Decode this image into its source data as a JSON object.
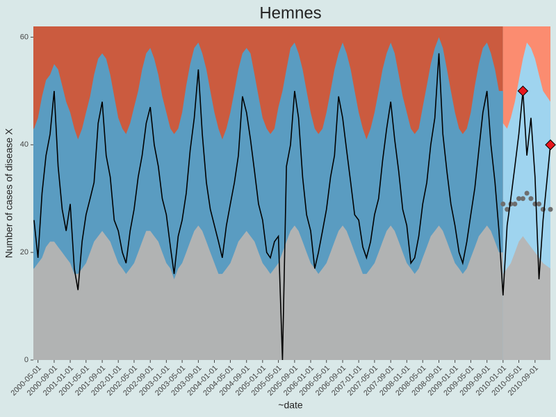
{
  "chart_data": {
    "type": "area",
    "title": "Hemnes",
    "xlabel": "~date",
    "ylabel": "Number of cases of disease X",
    "xlim": [
      "2000-03-27",
      "2010-12-27"
    ],
    "ylim": [
      0,
      62
    ],
    "yticks": [
      0,
      20,
      40,
      60
    ],
    "xticks": [
      "2000-05-01",
      "2000-09-01",
      "2001-01-01",
      "2001-05-01",
      "2001-09-01",
      "2002-01-01",
      "2002-05-01",
      "2002-09-01",
      "2003-01-01",
      "2003-05-01",
      "2003-09-01",
      "2004-01-01",
      "2004-05-01",
      "2004-09-01",
      "2005-01-01",
      "2005-05-01",
      "2005-09-01",
      "2006-01-01",
      "2006-05-01",
      "2006-09-01",
      "2007-01-01",
      "2007-05-01",
      "2007-09-01",
      "2008-01-01",
      "2008-05-01",
      "2008-09-01",
      "2009-01-01",
      "2009-05-01",
      "2009-09-01",
      "2010-01-01",
      "2010-05-01",
      "2010-09-01"
    ],
    "history": {
      "lower_color": "#b1b3b3",
      "band_color": "#5a9cc1",
      "top_color": "#cb5b3f",
      "x": [
        "2000-04-01",
        "2000-05-01",
        "2000-06-01",
        "2000-07-01",
        "2000-08-01",
        "2000-09-01",
        "2000-10-01",
        "2000-11-01",
        "2000-12-01",
        "2001-01-01",
        "2001-02-01",
        "2001-03-01",
        "2001-04-01",
        "2001-05-01",
        "2001-06-01",
        "2001-07-01",
        "2001-08-01",
        "2001-09-01",
        "2001-10-01",
        "2001-11-01",
        "2001-12-01",
        "2002-01-01",
        "2002-02-01",
        "2002-03-01",
        "2002-04-01",
        "2002-05-01",
        "2002-06-01",
        "2002-07-01",
        "2002-08-01",
        "2002-09-01",
        "2002-10-01",
        "2002-11-01",
        "2002-12-01",
        "2003-01-01",
        "2003-02-01",
        "2003-03-01",
        "2003-04-01",
        "2003-05-01",
        "2003-06-01",
        "2003-07-01",
        "2003-08-01",
        "2003-09-01",
        "2003-10-01",
        "2003-11-01",
        "2003-12-01",
        "2004-01-01",
        "2004-02-01",
        "2004-03-01",
        "2004-04-01",
        "2004-05-01",
        "2004-06-01",
        "2004-07-01",
        "2004-08-01",
        "2004-09-01",
        "2004-10-01",
        "2004-11-01",
        "2004-12-01",
        "2005-01-01",
        "2005-02-01",
        "2005-03-01",
        "2005-04-01",
        "2005-05-01",
        "2005-06-01",
        "2005-07-01",
        "2005-08-01",
        "2005-09-01",
        "2005-10-01",
        "2005-11-01",
        "2005-12-01",
        "2006-01-01",
        "2006-02-01",
        "2006-03-01",
        "2006-04-01",
        "2006-05-01",
        "2006-06-01",
        "2006-07-01",
        "2006-08-01",
        "2006-09-01",
        "2006-10-01",
        "2006-11-01",
        "2006-12-01",
        "2007-01-01",
        "2007-02-01",
        "2007-03-01",
        "2007-04-01",
        "2007-05-01",
        "2007-06-01",
        "2007-07-01",
        "2007-08-01",
        "2007-09-01",
        "2007-10-01",
        "2007-11-01",
        "2007-12-01",
        "2008-01-01",
        "2008-02-01",
        "2008-03-01",
        "2008-04-01",
        "2008-05-01",
        "2008-06-01",
        "2008-07-01",
        "2008-08-01",
        "2008-09-01",
        "2008-10-01",
        "2008-11-01",
        "2008-12-01",
        "2009-01-01",
        "2009-02-01",
        "2009-03-01",
        "2009-04-01",
        "2009-05-01",
        "2009-06-01",
        "2009-07-01",
        "2009-08-01",
        "2009-09-01",
        "2009-10-01",
        "2009-11-01",
        "2009-12-01"
      ],
      "lower": [
        17,
        18,
        19,
        21,
        22,
        22,
        21,
        20,
        19,
        18,
        16,
        16,
        17,
        18,
        20,
        22,
        23,
        24,
        23,
        22,
        20,
        18,
        17,
        16,
        17,
        18,
        20,
        22,
        24,
        24,
        23,
        22,
        20,
        18,
        17,
        15,
        17,
        18,
        20,
        22,
        24,
        25,
        24,
        22,
        20,
        18,
        16,
        16,
        17,
        18,
        20,
        22,
        23,
        24,
        23,
        22,
        20,
        18,
        17,
        16,
        17,
        18,
        20,
        22,
        24,
        25,
        24,
        22,
        20,
        18,
        17,
        16,
        17,
        18,
        20,
        22,
        24,
        25,
        24,
        22,
        20,
        18,
        16,
        16,
        17,
        18,
        20,
        22,
        24,
        25,
        24,
        22,
        20,
        18,
        17,
        16,
        17,
        19,
        21,
        23,
        24,
        25,
        24,
        22,
        20,
        18,
        17,
        16,
        17,
        19,
        21,
        23,
        24,
        25,
        24,
        22,
        20
      ],
      "upper": [
        43,
        45,
        49,
        52,
        53,
        55,
        54,
        51,
        48,
        46,
        43,
        41,
        43,
        46,
        49,
        53,
        56,
        57,
        56,
        53,
        49,
        45,
        43,
        42,
        44,
        47,
        50,
        54,
        57,
        58,
        56,
        53,
        49,
        46,
        43,
        42,
        43,
        46,
        51,
        55,
        58,
        59,
        57,
        54,
        50,
        46,
        43,
        41,
        43,
        46,
        50,
        54,
        57,
        58,
        57,
        53,
        49,
        45,
        43,
        42,
        43,
        47,
        50,
        54,
        58,
        59,
        57,
        54,
        50,
        46,
        43,
        42,
        43,
        46,
        50,
        54,
        57,
        59,
        57,
        54,
        50,
        46,
        43,
        41,
        43,
        46,
        50,
        54,
        57,
        59,
        57,
        53,
        49,
        46,
        43,
        42,
        43,
        47,
        51,
        55,
        58,
        60,
        58,
        54,
        50,
        46,
        43,
        42,
        43,
        46,
        51,
        55,
        58,
        59,
        57,
        54,
        50
      ]
    },
    "surveillance": {
      "lower_color": "#b6b7b7",
      "band_color": "#9fd4ef",
      "top_color": "#fb8c70",
      "baseline_color": "#6e6e6e",
      "x": [
        "2010-01-01",
        "2010-02-01",
        "2010-03-01",
        "2010-04-01",
        "2010-05-01",
        "2010-06-01",
        "2010-07-01",
        "2010-08-01",
        "2010-09-01",
        "2010-10-01",
        "2010-11-01",
        "2010-12-27"
      ],
      "lower": [
        16,
        17,
        18,
        20,
        22,
        23,
        22,
        21,
        20,
        19,
        18,
        17
      ],
      "upper": [
        44,
        43,
        45,
        48,
        52,
        56,
        59,
        58,
        56,
        53,
        50,
        48
      ],
      "baseline": [
        29,
        28,
        29,
        29,
        30,
        30,
        31,
        30,
        29,
        29,
        28,
        28
      ]
    },
    "observed": {
      "color": "#000000",
      "values": [
        26,
        19,
        31,
        38,
        42,
        50,
        36,
        28,
        24,
        29,
        17,
        13,
        22,
        27,
        30,
        33,
        44,
        48,
        38,
        34,
        26,
        24,
        20,
        18,
        24,
        28,
        34,
        38,
        44,
        47,
        40,
        36,
        30,
        27,
        21,
        16,
        23,
        26,
        31,
        39,
        45,
        54,
        42,
        33,
        28,
        25,
        22,
        19,
        25,
        29,
        33,
        38,
        49,
        46,
        41,
        35,
        29,
        26,
        20,
        19,
        22,
        23,
        0,
        36,
        40,
        50,
        45,
        34,
        27,
        24,
        17,
        20,
        24,
        28,
        34,
        38,
        49,
        45,
        39,
        33,
        27,
        26,
        21,
        19,
        22,
        27,
        30,
        37,
        43,
        48,
        41,
        35,
        28,
        25,
        18,
        19,
        23,
        29,
        33,
        40,
        45,
        57,
        42,
        35,
        29,
        25,
        20,
        18,
        22,
        27,
        32,
        39,
        46,
        50,
        40,
        33,
        24,
        12,
        25,
        30,
        36,
        42,
        50,
        38,
        45,
        34,
        15,
        26,
        40
      ]
    },
    "alarms": {
      "color": "#e8171d",
      "x": [
        "2010-06-01",
        "2010-12-27"
      ],
      "values": [
        50,
        40
      ]
    }
  }
}
